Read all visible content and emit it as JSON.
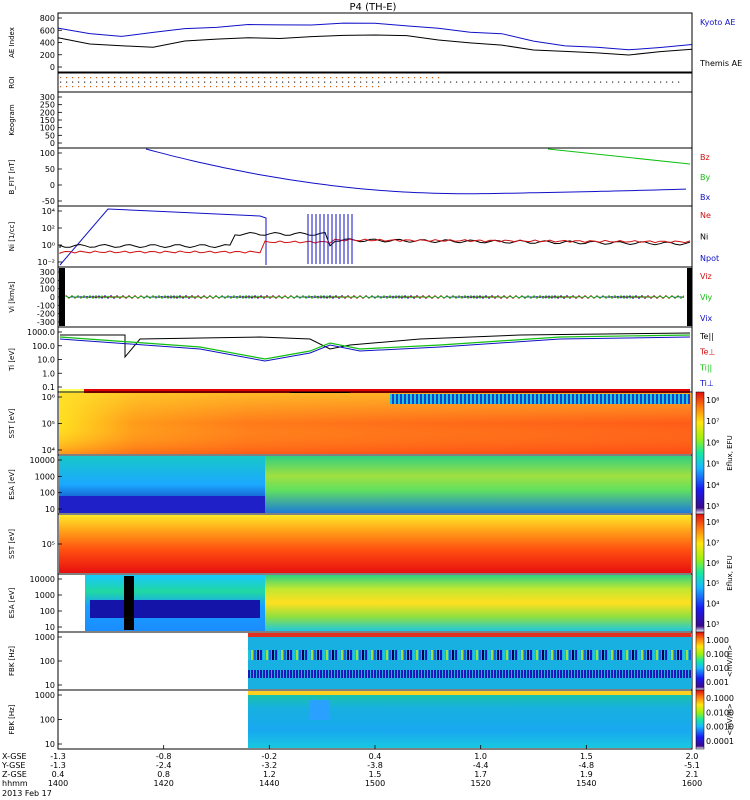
{
  "title": "P4 (TH-E)",
  "colors": {
    "blue": "#1010c8",
    "black": "#000000",
    "red": "#d01010",
    "green": "#10c010"
  },
  "panels": [
    {
      "id": "ae",
      "ylabel": "AE Index",
      "yticks": [
        "800",
        "600",
        "400",
        "200",
        "0"
      ],
      "legend": [
        {
          "text": "Kyoto AE",
          "color": "blue"
        },
        {
          "text": "Themis AE",
          "color": "black"
        }
      ]
    },
    {
      "id": "roi",
      "ylabel": "ROI",
      "yticks": [],
      "legend": []
    },
    {
      "id": "keo",
      "ylabel": "Keogram",
      "yticks": [
        "300",
        "250",
        "200",
        "150",
        "100",
        "50",
        "0"
      ],
      "legend": []
    },
    {
      "id": "bfit",
      "ylabel": "B_FIT [nT]",
      "yticks": [
        "100",
        "50",
        "0",
        "-50"
      ],
      "legend": [
        {
          "text": "Bz",
          "color": "red"
        },
        {
          "text": "By",
          "color": "green"
        },
        {
          "text": "Bx",
          "color": "blue"
        }
      ]
    },
    {
      "id": "ni",
      "ylabel": "Ni [1/cc]",
      "yticks": [
        "10⁴",
        "10²",
        "10⁰",
        "10⁻²"
      ],
      "legend": [
        {
          "text": "Ne",
          "color": "red"
        },
        {
          "text": "Ni",
          "color": "black"
        },
        {
          "text": "Npot",
          "color": "blue"
        }
      ]
    },
    {
      "id": "vi",
      "ylabel": "Vi [km/s]",
      "yticks": [
        "300",
        "200",
        "100",
        "0",
        "-100",
        "-200",
        "-300"
      ],
      "legend": [
        {
          "text": "Viz",
          "color": "red"
        },
        {
          "text": "Viy",
          "color": "green"
        },
        {
          "text": "Vix",
          "color": "blue"
        }
      ]
    },
    {
      "id": "ti",
      "ylabel": "Ti [eV]",
      "yticks": [
        "1000.0",
        "100.0",
        "10.0",
        "1.0",
        "0.1"
      ],
      "legend": [
        {
          "text": "Te||",
          "color": "black"
        },
        {
          "text": "Te⊥",
          "color": "red"
        },
        {
          "text": "Ti||",
          "color": "green"
        },
        {
          "text": "Ti⊥",
          "color": "blue"
        }
      ]
    },
    {
      "id": "sst_e",
      "ylabel": "SST [eV]",
      "yticks": [
        "10⁶",
        "10⁵",
        "10⁴"
      ],
      "legend": []
    },
    {
      "id": "esa_e",
      "ylabel": "ESA [eV]",
      "yticks": [
        "10000",
        "1000",
        "100",
        "10"
      ],
      "legend": []
    },
    {
      "id": "sst_i",
      "ylabel": "SST [eV]",
      "yticks": [
        "10⁵"
      ],
      "legend": []
    },
    {
      "id": "esa_i",
      "ylabel": "ESA [eV]",
      "yticks": [
        "10000",
        "1000",
        "100",
        "10"
      ],
      "legend": []
    },
    {
      "id": "fbk1",
      "ylabel": "FBK [Hz]",
      "yticks": [
        "1000",
        "100",
        "10"
      ],
      "legend": []
    },
    {
      "id": "fbk2",
      "ylabel": "FBK [Hz]",
      "yticks": [
        "1000",
        "100",
        "10"
      ],
      "legend": []
    }
  ],
  "colorbars": [
    {
      "label": "Eflux, EFU",
      "ticks": [
        "10⁸",
        "10⁷",
        "10⁶",
        "10⁵",
        "10⁴",
        "10³"
      ]
    },
    {
      "label": "Eflux, EFU",
      "ticks": [
        "10⁸",
        "10⁷",
        "10⁶",
        "10⁵",
        "10⁴",
        "10³"
      ]
    },
    {
      "label": "Eflux, EFU",
      "ticks": [
        "10⁸",
        "10⁷",
        "10⁶",
        "10⁵",
        "10⁴",
        "10³"
      ]
    },
    {
      "label": "<mV/m>",
      "ticks": [
        "1.000",
        "0.100",
        "0.010",
        "0.001"
      ]
    },
    {
      "label": "<mV/m>",
      "ticks": [
        "0.1000",
        "0.0100",
        "0.0010",
        "0.0001"
      ]
    }
  ],
  "chart_data": {
    "type": "line",
    "title": "P4 (TH-E)",
    "date": "2013 Feb 17",
    "xlim": [
      "1400",
      "1600"
    ],
    "x_axis_rows": [
      {
        "label": "X-GSE",
        "values": [
          "-1.3",
          "-0.8",
          "-0.2",
          "0.4",
          "1.0",
          "1.5",
          "2.0"
        ]
      },
      {
        "label": "Y-GSE",
        "values": [
          "-1.3",
          "-2.4",
          "-3.2",
          "-3.8",
          "-4.4",
          "-4.8",
          "-5.1"
        ]
      },
      {
        "label": "Z-GSE",
        "values": [
          "0.4",
          "0.8",
          "1.2",
          "1.5",
          "1.7",
          "1.9",
          "2.1"
        ]
      },
      {
        "label": "hhmm",
        "values": [
          "1400",
          "1420",
          "1440",
          "1500",
          "1520",
          "1540",
          "1600"
        ]
      }
    ],
    "series": [
      {
        "name": "Kyoto AE",
        "x": [
          1400,
          1410,
          1420,
          1430,
          1440,
          1450,
          1460,
          1470,
          1480,
          1490,
          1500,
          1510,
          1520,
          1530,
          1540,
          1550,
          1560,
          1570,
          1580,
          1590,
          1600
        ],
        "values": [
          610,
          520,
          500,
          540,
          600,
          630,
          650,
          660,
          660,
          670,
          690,
          640,
          600,
          560,
          520,
          420,
          360,
          320,
          300,
          330,
          360
        ]
      },
      {
        "name": "Themis AE",
        "x": [
          1400,
          1410,
          1420,
          1430,
          1440,
          1450,
          1460,
          1470,
          1480,
          1490,
          1500,
          1510,
          1520,
          1530,
          1540,
          1550,
          1560,
          1570,
          1580,
          1590,
          1600
        ],
        "values": [
          460,
          380,
          360,
          320,
          430,
          450,
          460,
          470,
          480,
          500,
          520,
          490,
          440,
          400,
          350,
          300,
          270,
          240,
          230,
          260,
          300
        ]
      }
    ],
    "ylim": [
      0,
      800
    ]
  }
}
